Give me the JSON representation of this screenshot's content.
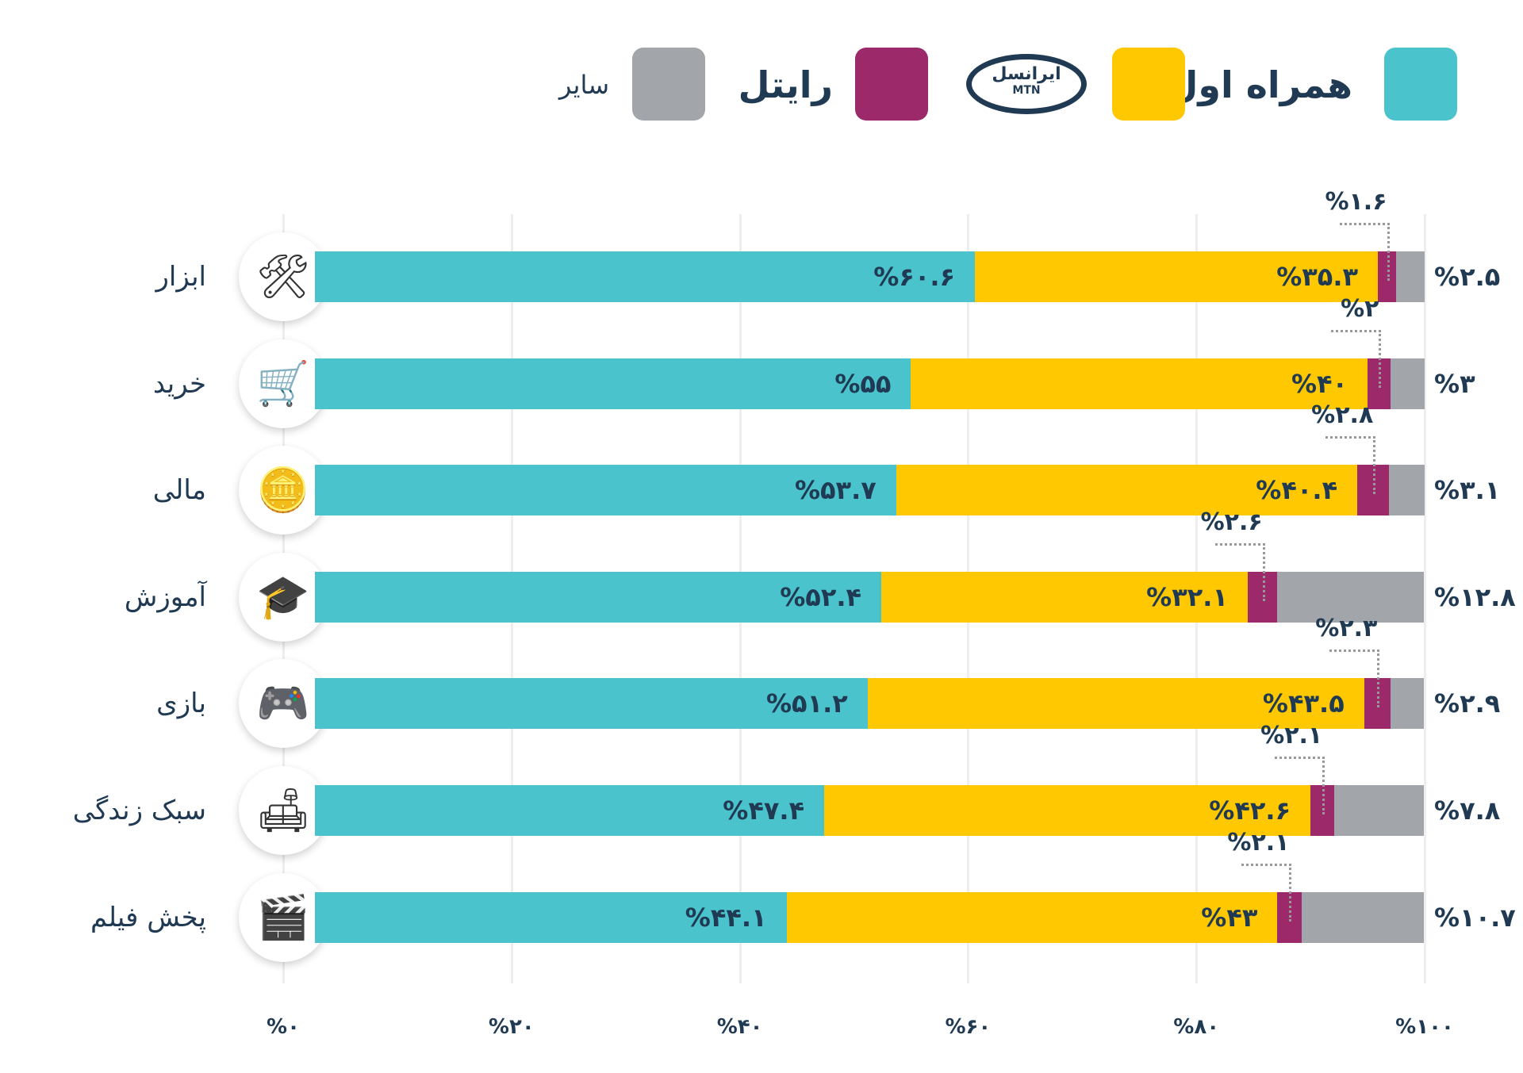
{
  "legend": {
    "items": [
      {
        "name": "همراه اول",
        "color": "#4bc3cc"
      },
      {
        "name": "ایرانسل",
        "sub": "MTN",
        "color": "#ffc800"
      },
      {
        "name": "رایتل",
        "color": "#9c2a6b"
      },
      {
        "name": "سایر",
        "color": "#a2a5aa"
      }
    ]
  },
  "chart_data": {
    "type": "bar",
    "stacked": true,
    "orientation": "horizontal",
    "categories": [
      "ابزار",
      "خرید",
      "مالی",
      "آموزش",
      "بازی",
      "سبک زندگی",
      "پخش فیلم"
    ],
    "icons": [
      "tools-icon",
      "shopping-cart-icon",
      "coins-icon",
      "graduation-cap-icon",
      "gamepad-icon",
      "armchair-icon",
      "clapperboard-icon"
    ],
    "series": [
      {
        "name": "همراه اول",
        "color": "#4bc3cc",
        "values": [
          60.6,
          55,
          53.7,
          52.4,
          51.2,
          47.4,
          44.1
        ],
        "labels": [
          "%۶۰.۶",
          "%۵۵",
          "%۵۳.۷",
          "%۵۲.۴",
          "%۵۱.۲",
          "%۴۷.۴",
          "%۴۴.۱"
        ]
      },
      {
        "name": "ایرانسل",
        "color": "#ffc800",
        "values": [
          35.3,
          40,
          40.4,
          32.1,
          43.5,
          42.6,
          43
        ],
        "labels": [
          "%۳۵.۳",
          "%۴۰",
          "%۴۰.۴",
          "%۳۲.۱",
          "%۴۳.۵",
          "%۴۲.۶",
          "%۴۳"
        ]
      },
      {
        "name": "رایتل",
        "color": "#9c2a6b",
        "values": [
          1.6,
          2,
          2.8,
          2.6,
          2.3,
          2.1,
          2.1
        ],
        "labels": [
          "%۱.۶",
          "%۲",
          "%۲.۸",
          "%۲.۶",
          "%۲.۳",
          "%۲.۱",
          "%۲.۱"
        ]
      },
      {
        "name": "سایر",
        "color": "#a2a5aa",
        "values": [
          2.5,
          3,
          3.1,
          12.8,
          2.9,
          7.8,
          10.7
        ],
        "labels": [
          "%۲.۵",
          "%۳",
          "%۳.۱",
          "%۱۲.۸",
          "%۲.۹",
          "%۷.۸",
          "%۱۰.۷"
        ]
      }
    ],
    "xlim": [
      0,
      100
    ],
    "xticks": [
      0,
      20,
      40,
      60,
      80,
      100
    ],
    "xtick_labels": [
      "%۰",
      "%۲۰",
      "%۴۰",
      "%۶۰",
      "%۸۰",
      "%۱۰۰"
    ],
    "grid": true,
    "legend": "top"
  }
}
